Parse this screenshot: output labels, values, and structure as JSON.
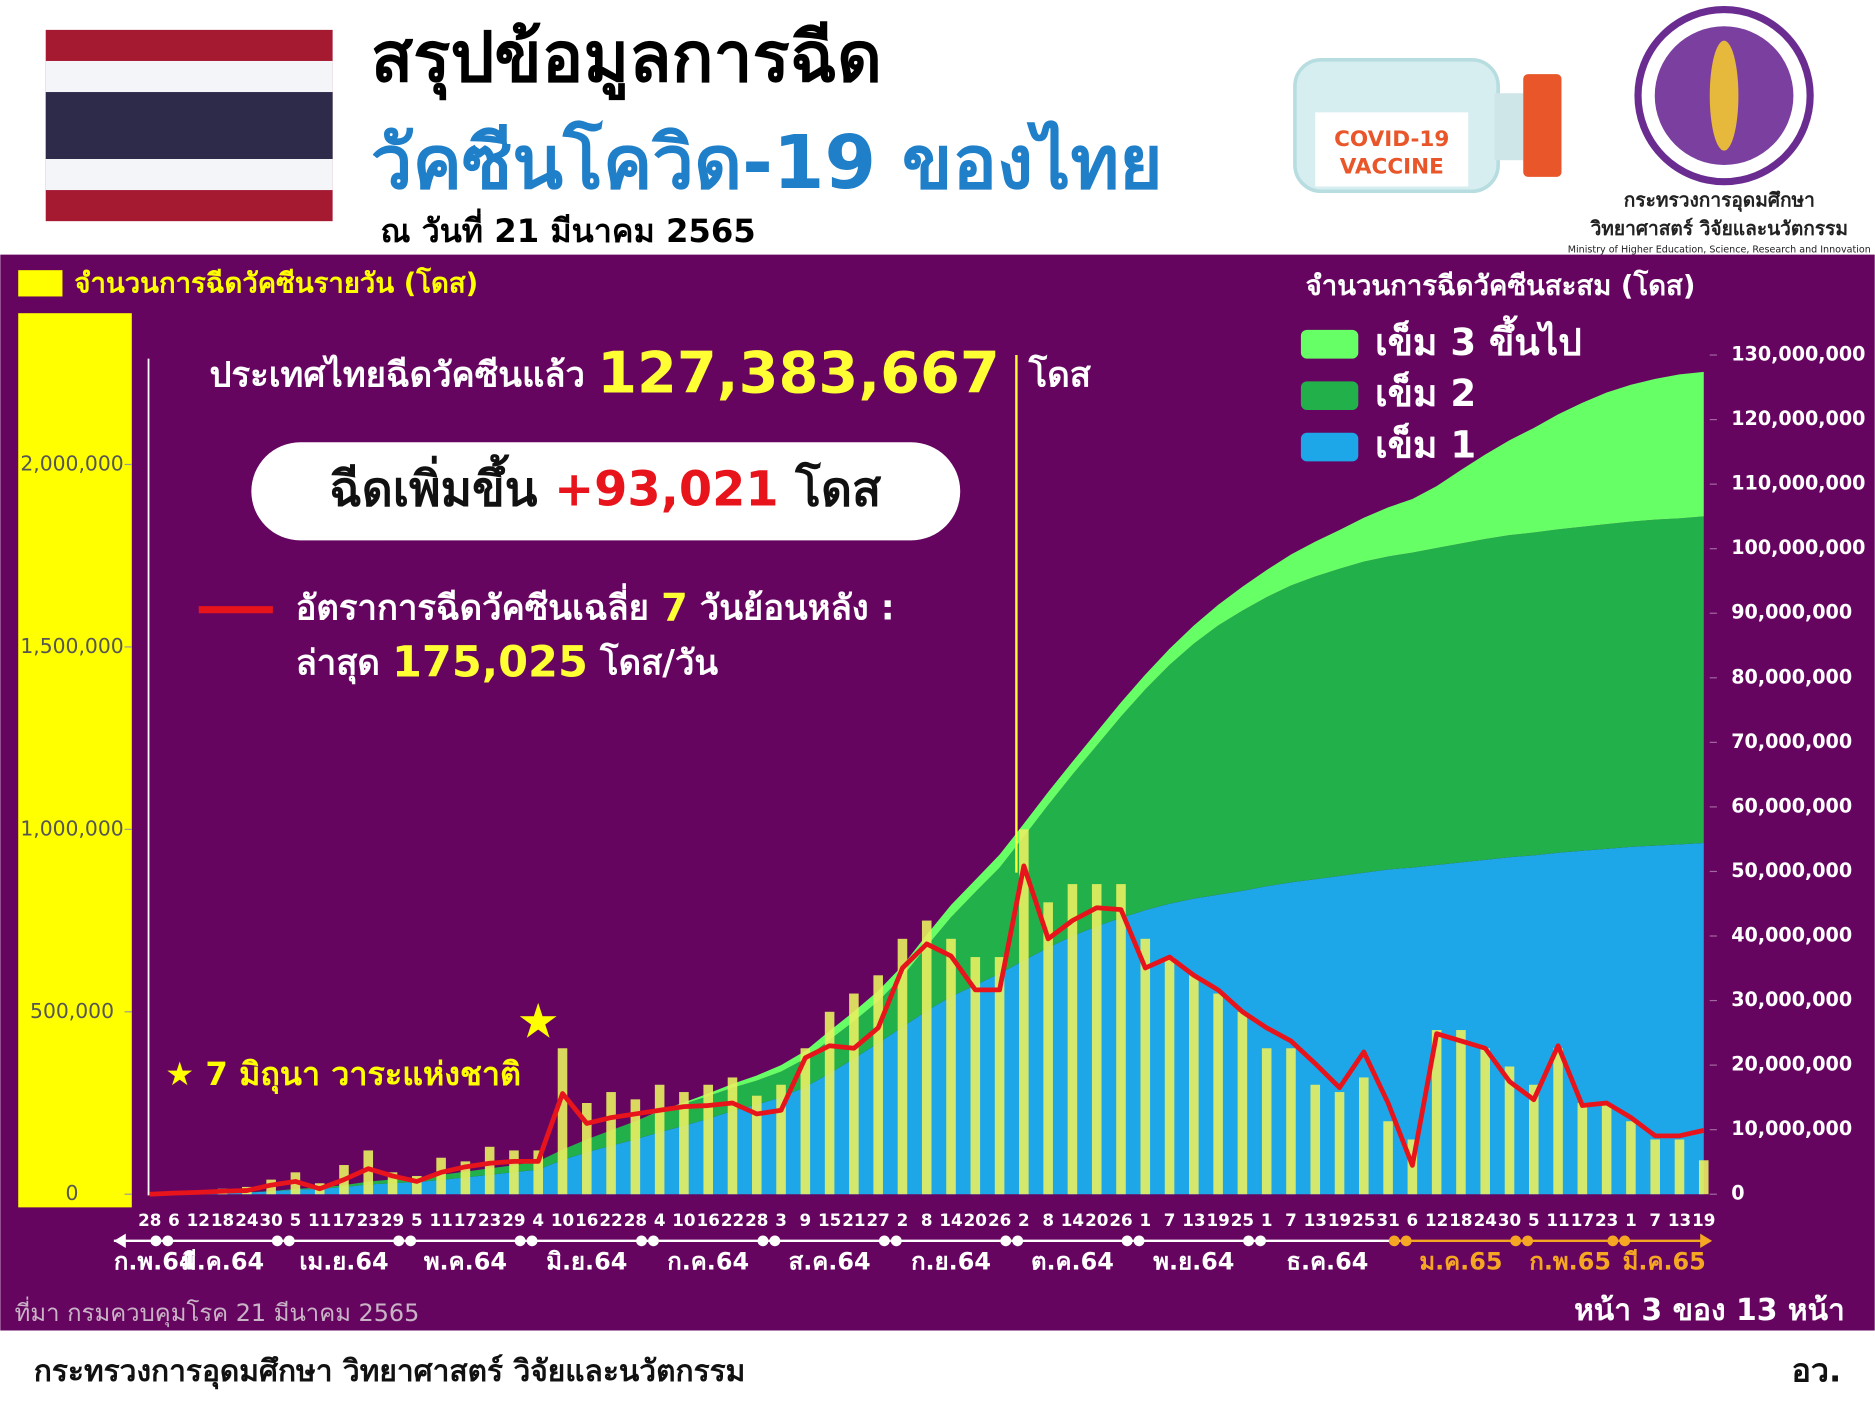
{
  "header": {
    "title_line1": "สรุปข้อมูลการฉีด",
    "title_line2": "วัคซีนโควิด-19 ของไทย",
    "date": "ณ วันที่ 21 มีนาคม 2565",
    "bottle_line1": "COVID-19",
    "bottle_line2": "VACCINE",
    "logo_line1": "กระทรวงการอุดมศึกษา",
    "logo_line2": "วิทยาศาสตร์ วิจัยและนวัตกรรม",
    "logo_line3": "Ministry of Higher Education, Science, Research and Innovation"
  },
  "summary": {
    "total_prefix": "ประเทศไทยฉีดวัคซีนแล้ว",
    "total": "127,383,667",
    "total_unit": "โดส",
    "increase_prefix": "ฉีดเพิ่มขึ้น",
    "increase": "+93,021",
    "increase_unit": "โดส",
    "avg_text1": "อัตราการฉีดวัคซีนเฉลี่ย",
    "avg_days": "7",
    "avg_text2": "วันย้อนหลัง :",
    "latest_prefix": "ล่าสุด",
    "latest": "175,025",
    "latest_unit": "โดส/วัน"
  },
  "chart_data": {
    "type": "bar",
    "y_label": "จำนวนการฉีดวัคซีนรายวัน (โดส)",
    "y2_label": "จำนวนการฉีดวัคซีนสะสม (โดส)",
    "annotation": "★ 7 มิถุนา วาระแห่งชาติ",
    "categories": [
      "28",
      "6",
      "12",
      "18",
      "24",
      "30",
      "5",
      "11",
      "17",
      "23",
      "29",
      "5",
      "11",
      "17",
      "23",
      "29",
      "4",
      "10",
      "16",
      "22",
      "28",
      "4",
      "10",
      "16",
      "22",
      "28",
      "3",
      "9",
      "15",
      "21",
      "27",
      "2",
      "8",
      "14",
      "20",
      "26",
      "2",
      "8",
      "14",
      "20",
      "26",
      "1",
      "7",
      "13",
      "19",
      "25",
      "1",
      "7",
      "13",
      "19",
      "25",
      "31",
      "6",
      "12",
      "18",
      "24",
      "30",
      "5",
      "11",
      "17",
      "23",
      "1",
      "7",
      "13",
      "19"
    ],
    "months": [
      {
        "label": "ก.พ.64",
        "color": "#ffffff"
      },
      {
        "label": "มี.ค.64",
        "color": "#ffffff"
      },
      {
        "label": "เม.ย.64",
        "color": "#ffffff"
      },
      {
        "label": "พ.ค.64",
        "color": "#ffffff"
      },
      {
        "label": "มิ.ย.64",
        "color": "#ffffff"
      },
      {
        "label": "ก.ค.64",
        "color": "#ffffff"
      },
      {
        "label": "ส.ค.64",
        "color": "#ffffff"
      },
      {
        "label": "ก.ย.64",
        "color": "#ffffff"
      },
      {
        "label": "ต.ค.64",
        "color": "#ffffff"
      },
      {
        "label": "พ.ย.64",
        "color": "#ffffff"
      },
      {
        "label": "ธ.ค.64",
        "color": "#ffffff"
      },
      {
        "label": "ม.ค.65",
        "color": "#f5a623"
      },
      {
        "label": "ก.พ.65",
        "color": "#f5a623"
      },
      {
        "label": "มี.ค.65",
        "color": "#f5a623"
      }
    ],
    "ylim": [
      0,
      2300000
    ],
    "yticks": [
      0,
      {
        "value": 500000,
        "label": "500,000"
      },
      {
        "value": 1000000,
        "label": "1,000,000"
      },
      {
        "value": 1500000,
        "label": "1,500,000"
      },
      {
        "value": 2000000,
        "label": "2,000,000"
      }
    ],
    "y2lim": [
      0,
      130000000
    ],
    "y2ticks": [
      0,
      {
        "value": 10000000,
        "label": "10,000,000"
      },
      {
        "value": 20000000,
        "label": "20,000,000"
      },
      {
        "value": 30000000,
        "label": "30,000,000"
      },
      {
        "value": 40000000,
        "label": "40,000,000"
      },
      {
        "value": 50000000,
        "label": "50,000,000"
      },
      {
        "value": 60000000,
        "label": "60,000,000"
      },
      {
        "value": 70000000,
        "label": "70,000,000"
      },
      {
        "value": 80000000,
        "label": "80,000,000"
      },
      {
        "value": 90000000,
        "label": "90,000,000"
      },
      {
        "value": 100000000,
        "label": "100,000,000"
      },
      {
        "value": 110000000,
        "label": "110,000,000"
      },
      {
        "value": 120000000,
        "label": "120,000,000"
      },
      {
        "value": 130000000,
        "label": "130,000,000"
      }
    ],
    "series": [
      {
        "name": "เข็ม 3 ขึ้นไป",
        "type": "area",
        "axis": "y2",
        "color": "#66ff66",
        "values": [
          0,
          0,
          0,
          0,
          0,
          0,
          0,
          0,
          0,
          0,
          0,
          0,
          0,
          0,
          0,
          0,
          0,
          0,
          0,
          0,
          0,
          100000,
          200000,
          400000,
          600000,
          800000,
          1000000,
          1200000,
          1400000,
          1500000,
          1600000,
          1700000,
          1800000,
          1900000,
          1900000,
          2000000,
          2000000,
          2000000,
          2000000,
          2100000,
          2200000,
          2300000,
          2500000,
          2800000,
          3200000,
          3700000,
          4200000,
          4800000,
          5400000,
          6000000,
          6800000,
          7600000,
          8300000,
          9600000,
          11400000,
          13100000,
          14700000,
          16200000,
          17800000,
          19200000,
          20400000,
          21200000,
          21800000,
          22300000,
          22400000
        ]
      },
      {
        "name": "เข็ม 2",
        "type": "area",
        "axis": "y2",
        "color": "#22b04b",
        "values": [
          0,
          0,
          0,
          20000,
          40000,
          50000,
          100000,
          200000,
          300000,
          450000,
          600000,
          700000,
          800000,
          900000,
          1000000,
          1100000,
          1300000,
          1600000,
          2000000,
          2400000,
          2800000,
          3200000,
          3400000,
          3500000,
          3600000,
          3700000,
          4000000,
          4400000,
          5200000,
          5800000,
          6500000,
          7800000,
          10000000,
          12300000,
          14400000,
          16400000,
          19200000,
          22100000,
          25000000,
          28000000,
          31200000,
          34200000,
          37000000,
          39500000,
          41700000,
          43400000,
          44800000,
          46000000,
          46900000,
          47600000,
          48200000,
          48500000,
          48800000,
          49100000,
          49400000,
          49700000,
          49900000,
          50000000,
          50100000,
          50200000,
          50300000,
          50400000,
          50500000,
          50500000,
          50600000
        ]
      },
      {
        "name": "เข็ม 1",
        "type": "area",
        "axis": "y2",
        "color": "#1ea7e8",
        "values": [
          0,
          50000,
          100000,
          150000,
          250000,
          450000,
          700000,
          850000,
          1100000,
          1500000,
          1700000,
          1900000,
          2200000,
          2600000,
          3000000,
          3400000,
          3800000,
          5300000,
          6500000,
          7500000,
          8500000,
          9600000,
          10600000,
          11700000,
          12900000,
          13900000,
          15000000,
          16600000,
          18700000,
          21000000,
          23400000,
          25900000,
          28400000,
          30600000,
          32400000,
          34200000,
          36200000,
          38200000,
          40000000,
          41500000,
          42800000,
          44000000,
          45000000,
          45800000,
          46400000,
          47000000,
          47700000,
          48300000,
          48800000,
          49300000,
          49800000,
          50300000,
          50600000,
          51000000,
          51400000,
          51800000,
          52200000,
          52500000,
          52900000,
          53200000,
          53500000,
          53800000,
          54000000,
          54200000,
          54400000
        ]
      },
      {
        "name": "จำนวนการฉีดวัคซีนรายวัน (โดส)",
        "type": "bar",
        "axis": "y",
        "color": "#e8f060",
        "values": [
          0,
          5000,
          10000,
          15000,
          20000,
          40000,
          60000,
          30000,
          80000,
          120000,
          60000,
          50000,
          100000,
          90000,
          130000,
          120000,
          120000,
          400000,
          250000,
          280000,
          260000,
          300000,
          280000,
          300000,
          320000,
          270000,
          300000,
          400000,
          500000,
          550000,
          600000,
          700000,
          750000,
          700000,
          650000,
          650000,
          1000000,
          800000,
          850000,
          850000,
          850000,
          700000,
          650000,
          600000,
          550000,
          500000,
          400000,
          400000,
          300000,
          280000,
          320000,
          200000,
          150000,
          450000,
          450000,
          400000,
          350000,
          300000,
          400000,
          250000,
          250000,
          200000,
          150000,
          150000,
          93021
        ]
      },
      {
        "type": "line",
        "axis": "y",
        "color": "#e8141c",
        "values": [
          0,
          3000,
          5000,
          8000,
          10000,
          25000,
          35000,
          15000,
          40000,
          70000,
          50000,
          35000,
          60000,
          75000,
          85000,
          90000,
          90000,
          276000,
          194000,
          210000,
          220000,
          230000,
          240000,
          243000,
          250000,
          220000,
          230000,
          374000,
          407000,
          400000,
          456000,
          620000,
          686000,
          653000,
          560000,
          560000,
          900000,
          700000,
          750000,
          785000,
          780000,
          620000,
          650000,
          600000,
          560000,
          500000,
          456000,
          420000,
          358000,
          292000,
          390000,
          250000,
          79000,
          440000,
          420000,
          400000,
          309000,
          259000,
          407000,
          243000,
          250000,
          210000,
          160000,
          160000,
          175025
        ]
      }
    ]
  },
  "footer": {
    "source": "ที่มา กรมควบคุมโรค 21 มีนาคม 2565",
    "page": "หน้า 3 ของ 13 หน้า",
    "ministry": "กระทรวงการอุดมศึกษา วิทยาศาสตร์ วิจัยและนวัตกรรม",
    "abbr": "อว."
  }
}
